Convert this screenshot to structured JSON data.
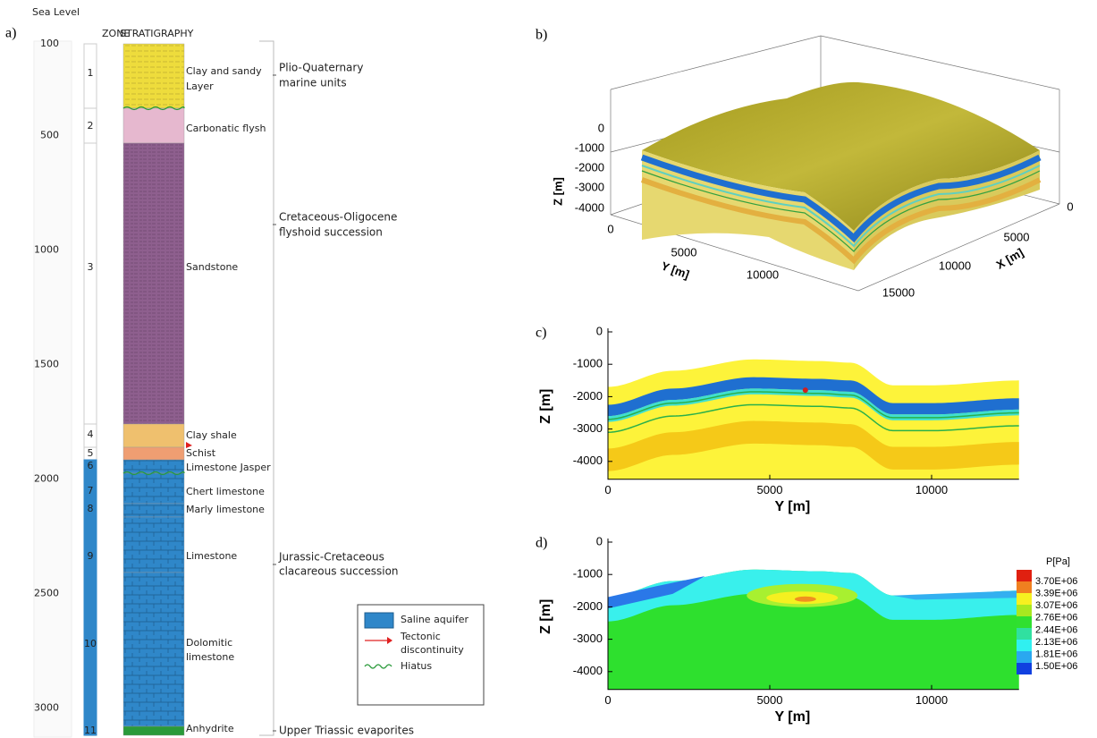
{
  "panel_a": {
    "label": "a)",
    "depth_label": "Sea Level",
    "zone_header": "ZONE",
    "strat_header": "STRATIGRAPHY",
    "depth_ticks": [
      100,
      500,
      1000,
      1500,
      2000,
      2500,
      3000
    ],
    "zones": [
      {
        "zone": "1",
        "name_lines": [
          "Clay and sandy",
          "Layer"
        ]
      },
      {
        "zone": "2",
        "name_lines": [
          "Carbonatic flysh"
        ]
      },
      {
        "zone": "3",
        "name_lines": [
          "Sandstone"
        ]
      },
      {
        "zone": "4",
        "name_lines": [
          "Clay shale"
        ]
      },
      {
        "zone": "5",
        "name_lines": [
          "Schist"
        ]
      },
      {
        "zone": "6",
        "name_lines": [
          "Limestone Jasper"
        ]
      },
      {
        "zone": "7",
        "name_lines": [
          "Chert limestone"
        ]
      },
      {
        "zone": "8",
        "name_lines": [
          "Marly limestone"
        ]
      },
      {
        "zone": "9",
        "name_lines": [
          "Limestone"
        ]
      },
      {
        "zone": "10",
        "name_lines": [
          "Dolomitic",
          "limestone"
        ]
      },
      {
        "zone": "11",
        "name_lines": [
          "Anhydrite"
        ]
      }
    ],
    "successions": [
      {
        "lines": [
          "Plio-Quaternary",
          "marine units"
        ]
      },
      {
        "lines": [
          "Cretaceous-Oligocene",
          "flyshoid succession"
        ]
      },
      {
        "lines": [
          "Jurassic-Cretaceous",
          "clacareous succession"
        ]
      },
      {
        "lines": [
          "Upper Triassic evaporites"
        ]
      }
    ],
    "legend": [
      {
        "lines": [
          "Saline aquifer"
        ]
      },
      {
        "lines": [
          "Tectonic",
          "discontinuity"
        ]
      },
      {
        "lines": [
          "Hiatus"
        ]
      }
    ]
  },
  "panel_b": {
    "label": "b)",
    "z_axis": "Z [m]",
    "y_axis": "Y [m]",
    "x_axis": "X [m]",
    "z_ticks": [
      0,
      -1000,
      -2000,
      -3000,
      -4000
    ],
    "y_ticks": [
      0,
      5000,
      10000
    ],
    "x_ticks": [
      0,
      5000,
      10000,
      15000
    ]
  },
  "panel_c": {
    "label": "c)",
    "y_axis": "Z [m]",
    "x_axis": "Y [m]",
    "y_ticks": [
      0,
      -1000,
      -2000,
      -3000,
      -4000
    ],
    "x_ticks": [
      0,
      5000,
      10000
    ]
  },
  "panel_d": {
    "label": "d)",
    "y_axis": "Z [m]",
    "x_axis": "Y [m]",
    "y_ticks": [
      0,
      -1000,
      -2000,
      -3000,
      -4000
    ],
    "x_ticks": [
      0,
      5000,
      10000
    ],
    "colorbar_title": "P[Pa]",
    "colorbar_labels": [
      "3.70E+06",
      "3.39E+06",
      "3.07E+06",
      "2.76E+06",
      "2.44E+06",
      "2.13E+06",
      "1.81E+06",
      "1.50E+06"
    ]
  }
}
